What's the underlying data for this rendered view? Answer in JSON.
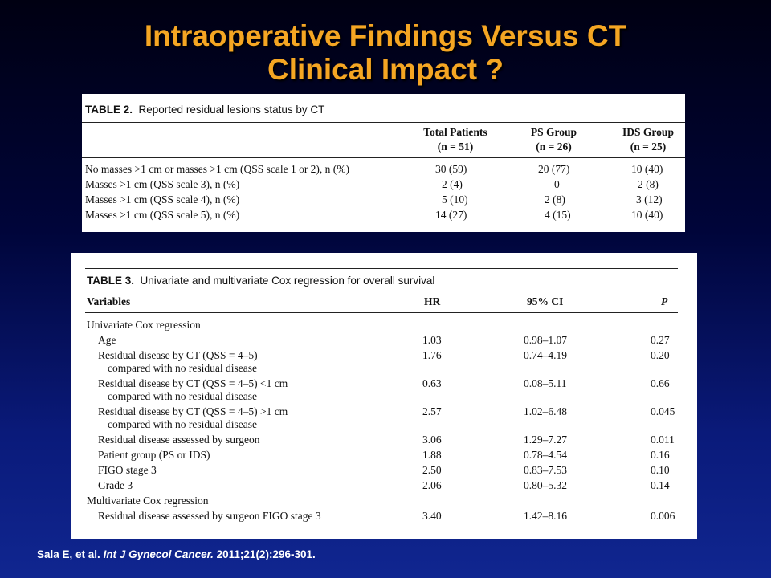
{
  "slide": {
    "title_line1": "Intraoperative Findings Versus CT",
    "title_line2": "Clinical Impact ?",
    "citation_authors": "Sala E, et al.",
    "citation_journal": "Int J Gynecol Cancer.",
    "citation_ref": "2011;21(2):296-301."
  },
  "table2": {
    "caption_label": "TABLE 2.",
    "caption_text": "Reported residual lesions status by CT",
    "columns": [
      {
        "name": "Total Patients",
        "n": "(n = 51)"
      },
      {
        "name": "PS Group",
        "n": "(n = 26)"
      },
      {
        "name": "IDS Group",
        "n": "(n = 25)"
      }
    ],
    "rows": [
      {
        "label": "No masses >1 cm or masses >1 cm (QSS scale 1 or 2), n (%)",
        "total": "30 (59)",
        "ps": "20 (77)",
        "ids": "10 (40)"
      },
      {
        "label": "Masses >1 cm (QSS scale 3), n (%)",
        "total": "2 (4)",
        "ps": "0",
        "ids": "2 (8)"
      },
      {
        "label": "Masses >1 cm (QSS scale 4), n (%)",
        "total": "5 (10)",
        "ps": "2 (8)",
        "ids": "3 (12)"
      },
      {
        "label": "Masses >1 cm (QSS scale 5), n (%)",
        "total": "14 (27)",
        "ps": "4 (15)",
        "ids": "10 (40)"
      }
    ]
  },
  "table3": {
    "caption_label": "TABLE 3.",
    "caption_text": "Univariate and multivariate Cox regression for overall survival",
    "headers": {
      "variables": "Variables",
      "hr": "HR",
      "ci": "95% CI",
      "p": "P"
    },
    "rows": [
      {
        "label": "Univariate Cox regression",
        "sub": "",
        "hr": "",
        "ci": "",
        "p": ""
      },
      {
        "label": "Age",
        "sub": "",
        "hr": "1.03",
        "ci": "0.98–1.07",
        "p": "0.27"
      },
      {
        "label": "Residual disease by CT (QSS = 4–5)",
        "sub": "compared with no residual disease",
        "hr": "1.76",
        "ci": "0.74–4.19",
        "p": "0.20"
      },
      {
        "label": "Residual disease by CT (QSS = 4–5) <1 cm",
        "sub": "compared with no residual disease",
        "hr": "0.63",
        "ci": "0.08–5.11",
        "p": "0.66"
      },
      {
        "label": "Residual disease by CT (QSS = 4–5) >1 cm",
        "sub": "compared with no residual disease",
        "hr": "2.57",
        "ci": "1.02–6.48",
        "p": "0.045"
      },
      {
        "label": "Residual disease assessed by surgeon",
        "sub": "",
        "hr": "3.06",
        "ci": "1.29–7.27",
        "p": "0.011"
      },
      {
        "label": "Patient group (PS or IDS)",
        "sub": "",
        "hr": "1.88",
        "ci": "0.78–4.54",
        "p": "0.16"
      },
      {
        "label": "FIGO stage 3",
        "sub": "",
        "hr": "2.50",
        "ci": "0.83–7.53",
        "p": "0.10"
      },
      {
        "label": "Grade 3",
        "sub": "",
        "hr": "2.06",
        "ci": "0.80–5.32",
        "p": "0.14"
      },
      {
        "label": "Multivariate Cox regression",
        "sub": "",
        "hr": "",
        "ci": "",
        "p": ""
      },
      {
        "label": "Residual disease assessed by surgeon FIGO stage 3",
        "sub": "",
        "hr": "3.40",
        "ci": "1.42–8.16",
        "p": "0.006"
      }
    ]
  },
  "colors": {
    "title": "#f5a623",
    "background": "#00053a",
    "panel": "#ffffff"
  }
}
